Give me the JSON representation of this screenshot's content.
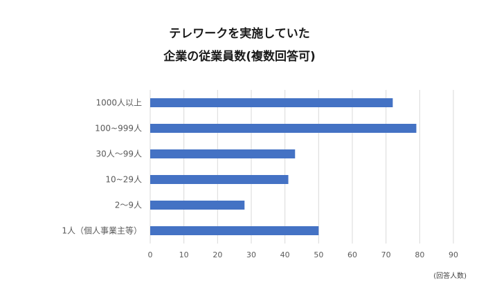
{
  "chart_data": {
    "type": "bar",
    "orientation": "horizontal",
    "title_lines": [
      "テレワークを実施していた",
      "企業の従業員数(複数回答可)"
    ],
    "categories": [
      "1000人以上",
      "100~999人",
      "30人～99人",
      "10~29人",
      "2～9人",
      "1人（個人事業主等）"
    ],
    "values": [
      72,
      79,
      43,
      41,
      28,
      50
    ],
    "xlim": [
      0,
      90
    ],
    "x_ticks": [
      0,
      10,
      20,
      30,
      40,
      50,
      60,
      70,
      80,
      90
    ],
    "unit_label": "(回答人数)",
    "grid": true,
    "bar_color": "#4472c4",
    "grid_color": "#d9d9d9"
  }
}
